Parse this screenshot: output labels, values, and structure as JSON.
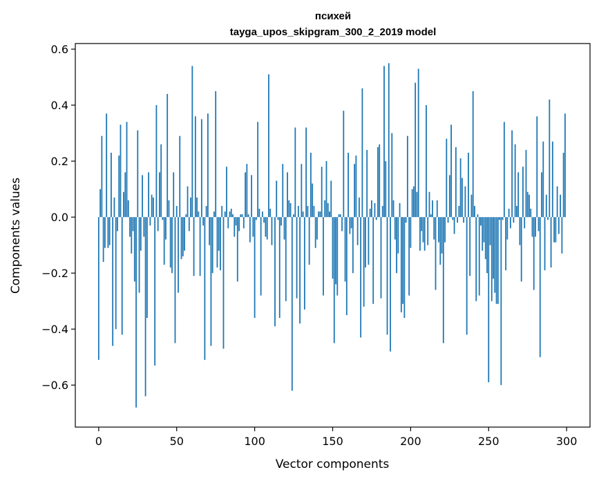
{
  "chart_data": {
    "type": "bar",
    "title_line1": "психей",
    "title_line2": "tayga_upos_skipgram_300_2_2019 model",
    "xlabel": "Vector components",
    "ylabel": "Components values",
    "xlim": [
      -15,
      315
    ],
    "ylim": [
      -0.75,
      0.62
    ],
    "xticks": [
      0,
      50,
      100,
      150,
      200,
      250,
      300
    ],
    "xtick_labels": [
      "0",
      "50",
      "100",
      "150",
      "200",
      "250",
      "300"
    ],
    "yticks": [
      -0.6,
      -0.4,
      -0.2,
      0.0,
      0.2,
      0.4,
      0.6
    ],
    "ytick_labels": [
      "−0.6",
      "−0.4",
      "−0.2",
      "0.0",
      "0.2",
      "0.4",
      "0.6"
    ],
    "bar_color": "#1f77b4",
    "values": [
      -0.51,
      0.1,
      0.29,
      -0.16,
      -0.11,
      0.37,
      -0.11,
      -0.1,
      0.23,
      -0.46,
      0.07,
      -0.4,
      -0.05,
      0.22,
      0.33,
      -0.42,
      0.09,
      0.16,
      0.34,
      0.06,
      -0.07,
      -0.13,
      -0.05,
      -0.23,
      -0.68,
      0.31,
      -0.27,
      -0.12,
      0.15,
      -0.07,
      -0.64,
      -0.36,
      0.16,
      -0.03,
      0.08,
      0.07,
      -0.53,
      0.4,
      -0.05,
      0.16,
      0.26,
      -0.01,
      -0.17,
      -0.08,
      0.44,
      0.06,
      -0.18,
      -0.2,
      0.16,
      -0.45,
      0.04,
      -0.27,
      0.29,
      -0.15,
      -0.14,
      -0.12,
      0.01,
      0.11,
      -0.05,
      0.07,
      0.54,
      -0.21,
      0.36,
      0.07,
      0.02,
      -0.21,
      0.35,
      -0.03,
      -0.51,
      0.04,
      0.37,
      -0.1,
      -0.46,
      -0.2,
      0.02,
      0.45,
      -0.18,
      -0.12,
      -0.19,
      0.04,
      -0.47,
      0.02,
      0.18,
      -0.04,
      0.02,
      0.03,
      0.01,
      -0.07,
      -0.03,
      -0.23,
      -0.05,
      0.01,
      0.01,
      -0.04,
      0.16,
      0.19,
      0.01,
      -0.09,
      0.15,
      -0.07,
      -0.36,
      -0.01,
      0.34,
      0.03,
      -0.28,
      0.02,
      -0.02,
      -0.07,
      -0.08,
      0.51,
      0.03,
      -0.1,
      0.0,
      -0.39,
      0.13,
      -0.01,
      -0.36,
      -0.03,
      0.19,
      -0.08,
      -0.3,
      0.16,
      0.06,
      0.05,
      -0.62,
      0.01,
      0.32,
      -0.29,
      0.04,
      -0.38,
      0.19,
      0.02,
      -0.33,
      0.32,
      0.04,
      -0.17,
      0.23,
      0.12,
      0.04,
      -0.11,
      -0.08,
      0.02,
      0.02,
      0.18,
      -0.28,
      0.06,
      0.2,
      0.05,
      0.02,
      0.13,
      -0.22,
      -0.45,
      -0.24,
      -0.28,
      0.01,
      0.01,
      -0.05,
      0.38,
      -0.23,
      -0.35,
      0.23,
      -0.06,
      -0.04,
      -0.2,
      0.19,
      0.22,
      -0.1,
      0.07,
      -0.43,
      0.46,
      -0.32,
      -0.18,
      0.24,
      -0.17,
      0.03,
      0.06,
      -0.31,
      0.05,
      -0.01,
      0.25,
      0.26,
      -0.29,
      0.04,
      0.54,
      0.2,
      -0.42,
      0.55,
      -0.48,
      0.3,
      0.06,
      -0.08,
      -0.2,
      -0.13,
      0.05,
      -0.34,
      -0.31,
      -0.36,
      -0.02,
      0.29,
      -0.28,
      -0.11,
      0.1,
      0.11,
      0.48,
      0.09,
      0.53,
      -0.12,
      -0.05,
      -0.09,
      -0.12,
      0.4,
      -0.1,
      0.09,
      0.01,
      0.06,
      -0.08,
      -0.26,
      0.06,
      -0.09,
      -0.17,
      -0.13,
      -0.45,
      -0.09,
      0.28,
      -0.02,
      0.15,
      0.33,
      -0.01,
      -0.06,
      0.25,
      -0.02,
      0.04,
      0.21,
      0.14,
      -0.02,
      0.11,
      -0.42,
      0.23,
      -0.21,
      0.08,
      0.45,
      0.04,
      -0.3,
      0.01,
      -0.28,
      -0.03,
      -0.12,
      -0.09,
      -0.15,
      -0.2,
      -0.59,
      -0.1,
      -0.3,
      -0.22,
      -0.27,
      -0.31,
      -0.31,
      -0.01,
      -0.6,
      -0.01,
      0.34,
      -0.19,
      -0.08,
      0.03,
      -0.04,
      0.31,
      -0.02,
      0.26,
      0.04,
      0.16,
      -0.1,
      -0.23,
      0.18,
      -0.04,
      0.24,
      0.09,
      0.08,
      0.03,
      -0.07,
      -0.26,
      -0.07,
      0.36,
      -0.05,
      -0.5,
      0.16,
      0.27,
      -0.19,
      0.08,
      -0.01,
      0.42,
      -0.18,
      0.27,
      -0.09,
      -0.09,
      0.11,
      -0.06,
      0.08,
      -0.13,
      0.23,
      0.37
    ]
  }
}
